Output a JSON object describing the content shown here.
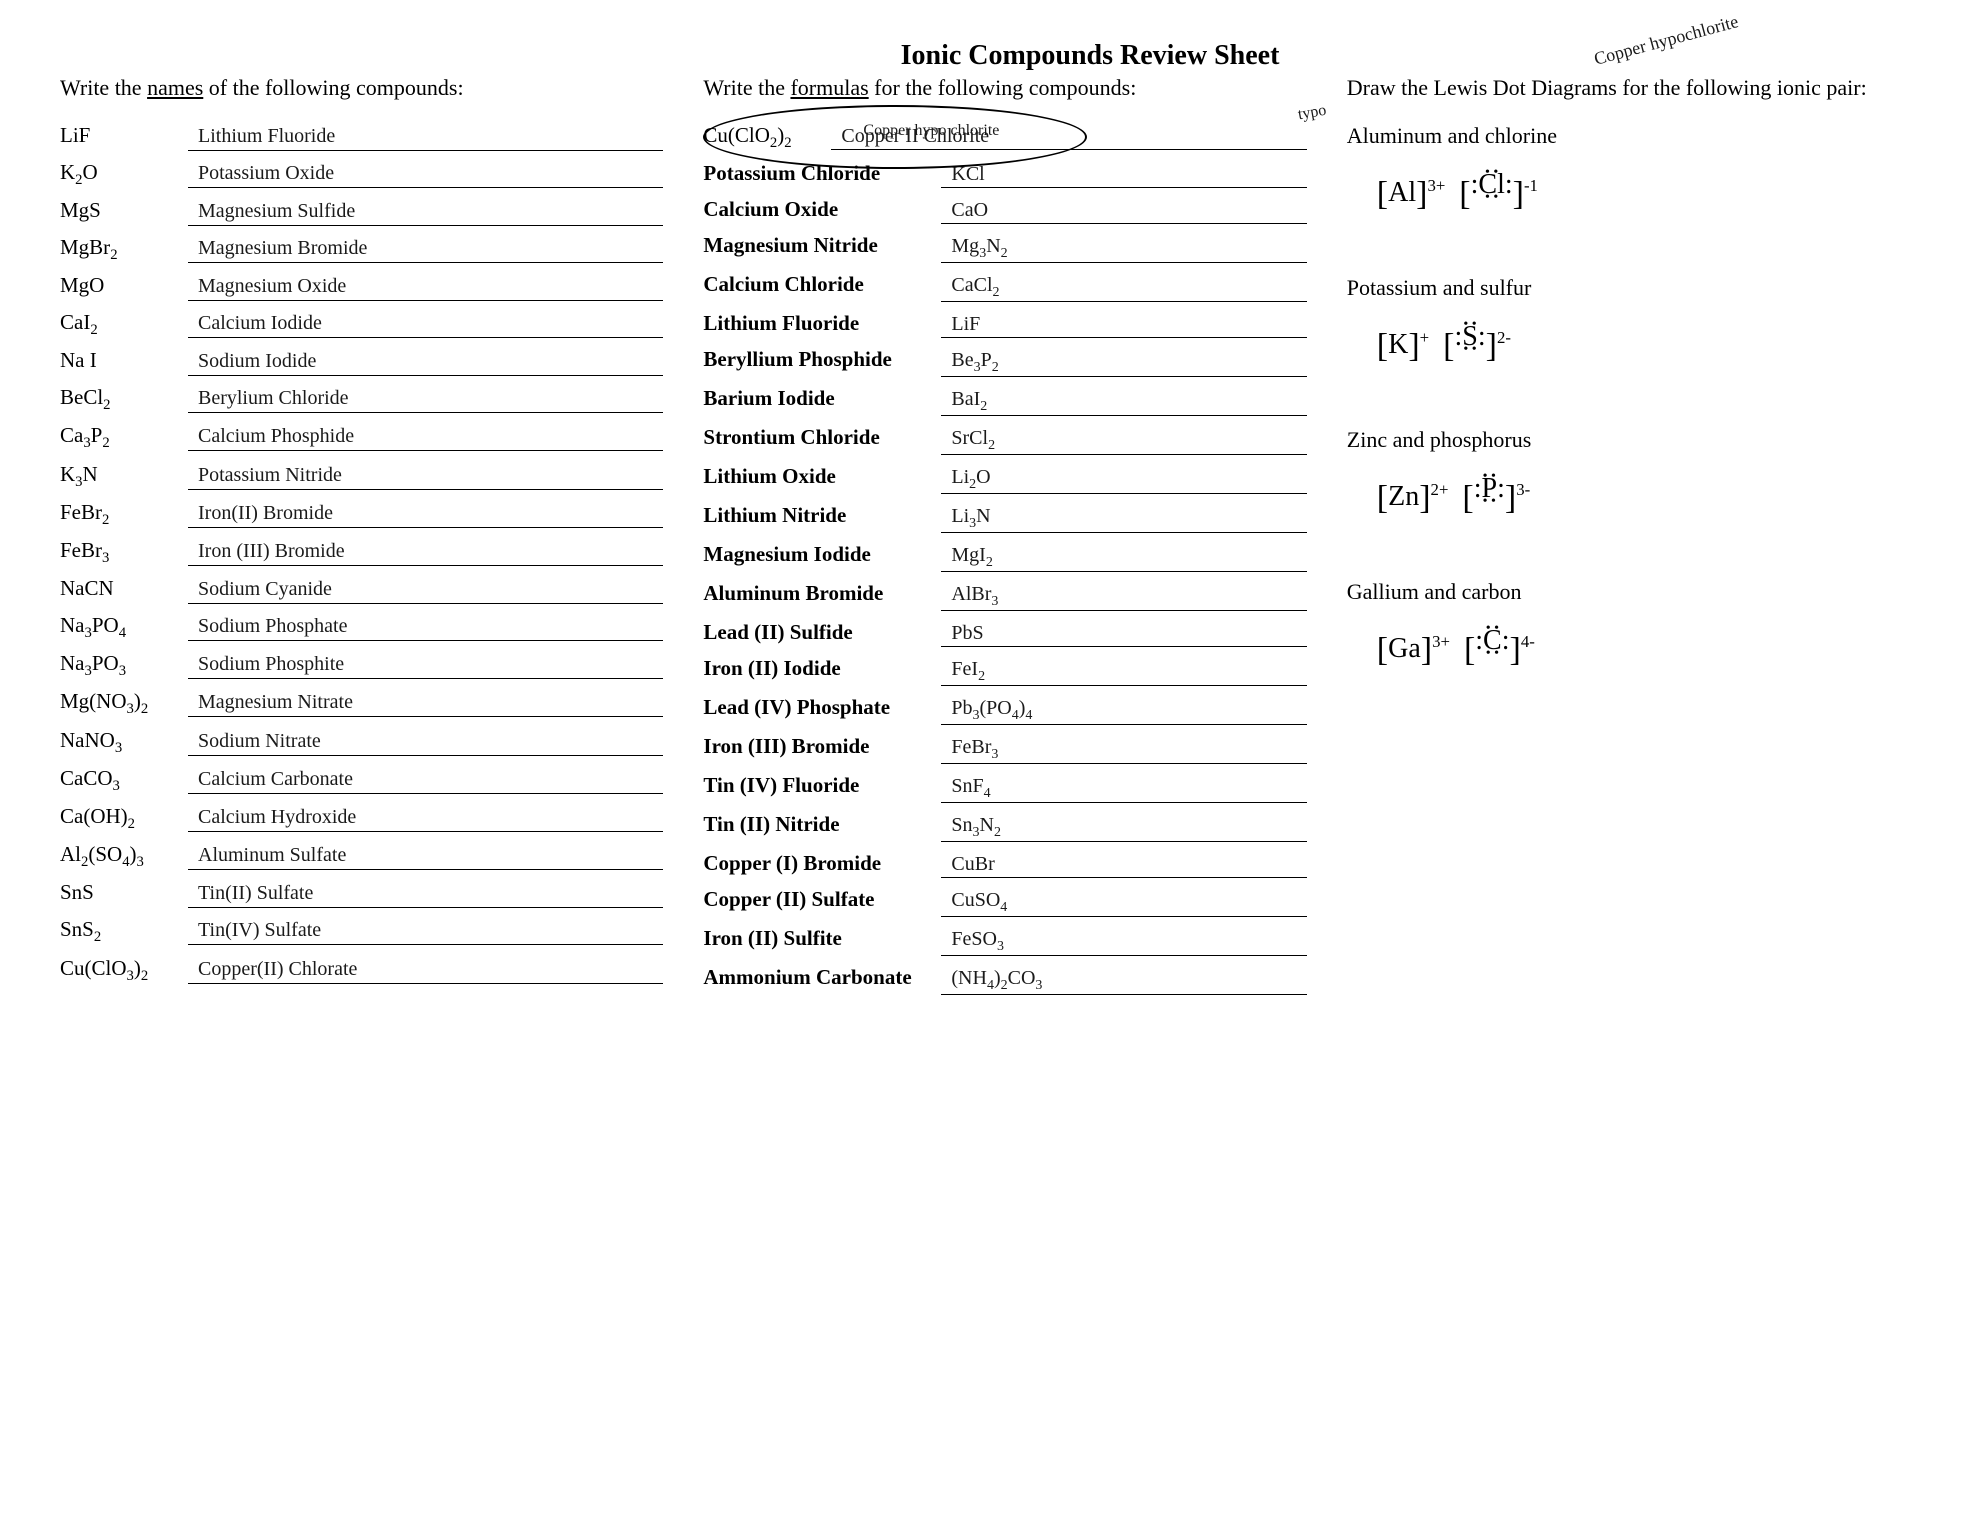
{
  "page": {
    "title": "Ionic Compounds Review Sheet",
    "background_color": "#ffffff",
    "text_color": "#000000",
    "handwriting_color": "#1a1a1a"
  },
  "annotations": {
    "top_right": "Copper hypochlorite",
    "typo_marker": "typo",
    "correction": "Copper hypo chlorite"
  },
  "column1": {
    "instructions_prefix": "Write the ",
    "instructions_underlined": "names",
    "instructions_suffix": " of the following compounds:",
    "rows": [
      {
        "formula": "LiF",
        "answer": "Lithium Fluoride"
      },
      {
        "formula": "K₂O",
        "answer": "Potassium Oxide"
      },
      {
        "formula": "MgS",
        "answer": "Magnesium Sulfide"
      },
      {
        "formula": "MgBr₂",
        "answer": "Magnesium Bromide"
      },
      {
        "formula": "MgO",
        "answer": "Magnesium Oxide"
      },
      {
        "formula": "CaI₂",
        "answer": "Calcium Iodide"
      },
      {
        "formula": "Na I",
        "answer": "Sodium Iodide"
      },
      {
        "formula": "BeCl₂",
        "answer": "Berylium Chloride"
      },
      {
        "formula": "Ca₃P₂",
        "answer": "Calcium Phosphide"
      },
      {
        "formula": "K₃N",
        "answer": "Potassium Nitride"
      },
      {
        "formula": "FeBr₂",
        "answer": "Iron(II) Bromide"
      },
      {
        "formula": "FeBr₃",
        "answer": "Iron (III) Bromide"
      },
      {
        "formula": "NaCN",
        "answer": "Sodium Cyanide"
      },
      {
        "formula": "Na₃PO₄",
        "answer": "Sodium Phosphate"
      },
      {
        "formula": "Na₃PO₃",
        "answer": "Sodium Phosphite"
      },
      {
        "formula": "Mg(NO₃)₂",
        "answer": "Magnesium Nitrate"
      },
      {
        "formula": "NaNO₃",
        "answer": "Sodium Nitrate"
      },
      {
        "formula": "CaCO₃",
        "answer": "Calcium Carbonate"
      },
      {
        "formula": "Ca(OH)₂",
        "answer": "Calcium Hydroxide"
      },
      {
        "formula": "Al₂(SO₄)₃",
        "answer": "Aluminum Sulfate"
      },
      {
        "formula": "SnS",
        "answer": "Tin(II) Sulfate"
      },
      {
        "formula": "SnS₂",
        "answer": "Tin(IV) Sulfate"
      },
      {
        "formula": "Cu(ClO₃)₂",
        "answer": "Copper(II) Chlorate"
      }
    ]
  },
  "column2": {
    "instructions_prefix": "Write the ",
    "instructions_underlined": "formulas",
    "instructions_suffix": " for the following compounds:",
    "first_row_label": "Cu(ClO₂)₂",
    "first_row_answer": "Copper II Chlorite",
    "rows": [
      {
        "name": "Potassium Chloride",
        "answer": "KCl"
      },
      {
        "name": "Calcium Oxide",
        "answer": "CaO"
      },
      {
        "name": "Magnesium Nitride",
        "answer": "Mg₃N₂"
      },
      {
        "name": "Calcium Chloride",
        "answer": "CaCl₂"
      },
      {
        "name": "Lithium Fluoride",
        "answer": "LiF"
      },
      {
        "name": "Beryllium Phosphide",
        "answer": "Be₃P₂"
      },
      {
        "name": "Barium Iodide",
        "answer": "BaI₂"
      },
      {
        "name": "Strontium Chloride",
        "answer": "SrCl₂"
      },
      {
        "name": "Lithium Oxide",
        "answer": "Li₂O"
      },
      {
        "name": "Lithium Nitride",
        "answer": "Li₃N"
      },
      {
        "name": "Magnesium Iodide",
        "answer": "MgI₂"
      },
      {
        "name": "Aluminum Bromide",
        "answer": "AlBr₃"
      },
      {
        "name": "Lead (II) Sulfide",
        "answer": "PbS"
      },
      {
        "name": "Iron (II) Iodide",
        "answer": "FeI₂"
      },
      {
        "name": "Lead (IV) Phosphate",
        "answer": "Pb₃(PO₄)₄"
      },
      {
        "name": "Iron (III) Bromide",
        "answer": "FeBr₃"
      },
      {
        "name": "Tin (IV) Fluoride",
        "answer": "SnF₄"
      },
      {
        "name": "Tin (II) Nitride",
        "answer": "Sn₃N₂"
      },
      {
        "name": "Copper (I) Bromide",
        "answer": "CuBr"
      },
      {
        "name": "Copper (II) Sulfate",
        "answer": "CuSO₄"
      },
      {
        "name": "Iron (II) Sulfite",
        "answer": "FeSO₃"
      },
      {
        "name": "Ammonium Carbonate",
        "answer": "(NH₄)₂CO₃"
      }
    ]
  },
  "column3": {
    "instructions": "Draw the Lewis Dot Diagrams for the following ionic pair:",
    "sections": [
      {
        "title": "Aluminum and chlorine",
        "cation": "Al",
        "cation_charge": "3+",
        "anion": "Cl",
        "anion_charge": "-1",
        "anion_dots": 8
      },
      {
        "title": "Potassium and sulfur",
        "cation": "K",
        "cation_charge": "+",
        "anion": "S",
        "anion_charge": "2-",
        "anion_dots": 8
      },
      {
        "title": "Zinc and phosphorus",
        "cation": "Zn",
        "cation_charge": "2+",
        "anion": "P",
        "anion_charge": "3-",
        "anion_dots": 8
      },
      {
        "title": "Gallium and carbon",
        "cation": "Ga",
        "cation_charge": "3+",
        "anion": "C",
        "anion_charge": "4-",
        "anion_dots": 8
      }
    ]
  }
}
